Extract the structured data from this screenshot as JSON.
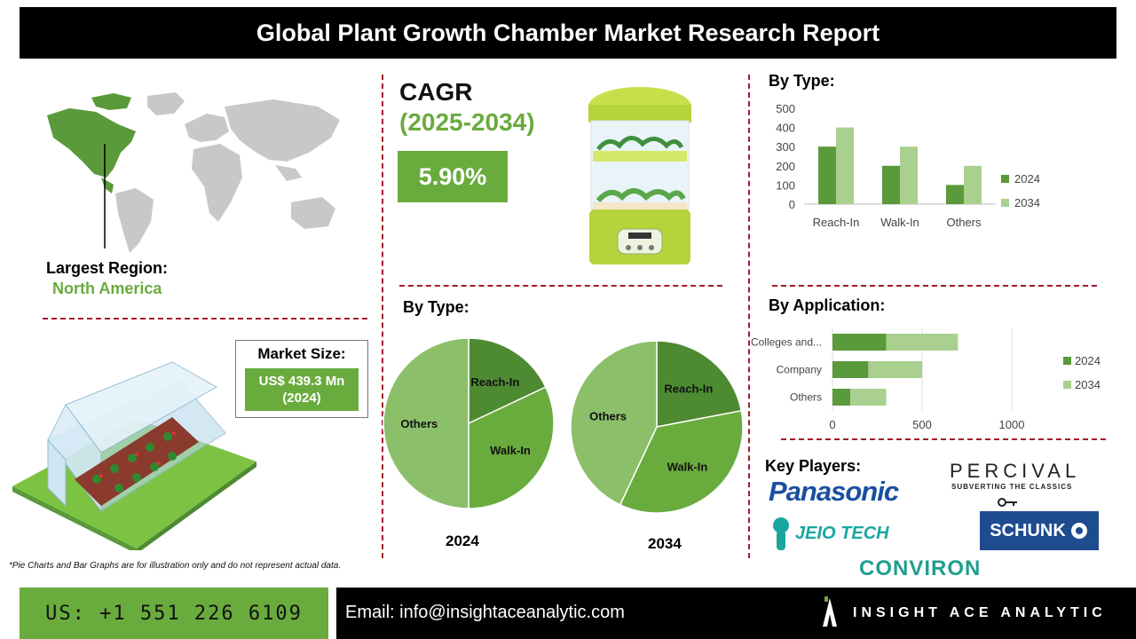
{
  "title": "Global Plant Growth Chamber Market Research Report",
  "region": {
    "label": "Largest Region:",
    "value": "North America"
  },
  "cagr": {
    "label": "CAGR",
    "period": "(2025-2034)",
    "value": "5.90%"
  },
  "market_size": {
    "label": "Market Size:",
    "value_line1": "US$ 439.3 Mn",
    "value_line2": "(2024)"
  },
  "pie_section": {
    "heading": "By Type:",
    "year_a": "2024",
    "year_b": "2034"
  },
  "bar_type_heading": "By Type:",
  "bar_app_heading": "By Application:",
  "key_players": {
    "heading": "Key Players:",
    "percival": "PERCIVAL",
    "percival_tagline": "SUBVERTING THE CLASSICS",
    "panasonic": "Panasonic",
    "jeiotech": "JEIO TECH",
    "schunk": "SCHUNK",
    "conviron": "CONVIRON"
  },
  "footnote": "*Pie Charts and Bar Graphs are for illustration only and do not represent actual data.",
  "footer": {
    "phone": "US: +1 551 226 6109",
    "email": "Email: info@insightaceanalytic.com",
    "brand": "INSIGHT ACE ANALYTIC"
  },
  "colors": {
    "green_dark": "#5a9a3a",
    "green_light": "#a9d08e",
    "pie_dark": "#4e8a32",
    "pie_mid": "#6aab3e",
    "pie_light": "#8cbf6a",
    "accent": "#6aab3e",
    "divider": "#a6192e"
  },
  "chart_data": [
    {
      "type": "pie",
      "title": "2024",
      "slices": [
        {
          "label": "Reach-In",
          "value": 18
        },
        {
          "label": "Walk-In",
          "value": 32
        },
        {
          "label": "Others",
          "value": 50
        }
      ]
    },
    {
      "type": "pie",
      "title": "2034",
      "slices": [
        {
          "label": "Reach-In",
          "value": 22
        },
        {
          "label": "Walk-In",
          "value": 35
        },
        {
          "label": "Others",
          "value": 43
        }
      ]
    },
    {
      "type": "bar",
      "categories": [
        "Reach-In",
        "Walk-In",
        "Others"
      ],
      "series": [
        {
          "name": "2024",
          "values": [
            300,
            200,
            100
          ]
        },
        {
          "name": "2034",
          "values": [
            400,
            300,
            200
          ]
        }
      ],
      "yticks": [
        "0",
        "100",
        "200",
        "300",
        "400",
        "500"
      ],
      "ylim": [
        0,
        500
      ],
      "legend": "right"
    },
    {
      "type": "bar",
      "orientation": "horizontal-stacked",
      "categories": [
        "Colleges and...",
        "Company",
        "Others"
      ],
      "series": [
        {
          "name": "2024",
          "values": [
            300,
            200,
            100
          ]
        },
        {
          "name": "2034",
          "values": [
            400,
            300,
            200
          ]
        }
      ],
      "xticks": [
        "0",
        "500",
        "1000"
      ],
      "xlim": [
        0,
        1000
      ],
      "legend": "right"
    }
  ]
}
